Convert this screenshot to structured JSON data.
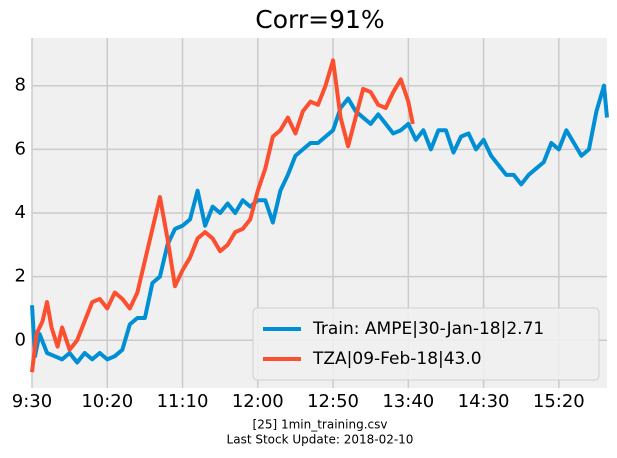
{
  "chart_data": {
    "type": "line",
    "title": "Corr=91%",
    "xlabel": [
      "[25] 1min_training.csv",
      "Last Stock Update: 2018-02-10"
    ],
    "xlim": [
      570,
      952
    ],
    "ylim": [
      -1.5,
      9.5
    ],
    "xticks": [
      {
        "value": 570,
        "label": "9:30"
      },
      {
        "value": 620,
        "label": "10:20"
      },
      {
        "value": 670,
        "label": "11:10"
      },
      {
        "value": 720,
        "label": "12:00"
      },
      {
        "value": 770,
        "label": "12:50"
      },
      {
        "value": 820,
        "label": "13:40"
      },
      {
        "value": 870,
        "label": "14:30"
      },
      {
        "value": 920,
        "label": "15:20"
      }
    ],
    "yticks": [
      0,
      2,
      4,
      6,
      8
    ],
    "grid": true,
    "legend": "lower right",
    "series": [
      {
        "name": "Train: AMPE|30-Jan-18|2.71",
        "color": "#008fd5",
        "x": [
          570,
          572,
          575,
          580,
          585,
          590,
          595,
          600,
          605,
          610,
          615,
          620,
          625,
          630,
          635,
          640,
          645,
          650,
          655,
          660,
          665,
          670,
          675,
          680,
          685,
          690,
          695,
          700,
          705,
          710,
          715,
          720,
          725,
          730,
          735,
          740,
          745,
          750,
          755,
          760,
          765,
          770,
          775,
          780,
          785,
          790,
          795,
          800,
          805,
          810,
          815,
          820,
          825,
          830,
          835,
          840,
          845,
          850,
          855,
          860,
          865,
          870,
          875,
          880,
          885,
          890,
          895,
          900,
          905,
          910,
          915,
          920,
          925,
          930,
          935,
          940,
          945,
          950,
          952
        ],
        "values": [
          1.1,
          -0.5,
          0.2,
          -0.4,
          -0.5,
          -0.6,
          -0.4,
          -0.7,
          -0.4,
          -0.6,
          -0.4,
          -0.6,
          -0.5,
          -0.3,
          0.5,
          0.7,
          0.7,
          1.8,
          2.0,
          3.0,
          3.5,
          3.6,
          3.8,
          4.7,
          3.6,
          4.2,
          4.0,
          4.3,
          4.0,
          4.4,
          4.2,
          4.4,
          4.4,
          3.7,
          4.7,
          5.2,
          5.8,
          6.0,
          6.2,
          6.2,
          6.4,
          6.6,
          7.3,
          7.6,
          7.2,
          7.0,
          6.8,
          7.1,
          6.8,
          6.5,
          6.6,
          6.8,
          6.3,
          6.6,
          6.0,
          6.6,
          6.6,
          5.9,
          6.4,
          6.5,
          6.0,
          6.3,
          5.8,
          5.5,
          5.2,
          5.2,
          4.9,
          5.2,
          5.4,
          5.6,
          6.2,
          6.0,
          6.6,
          6.2,
          5.8,
          6.0,
          7.2,
          8.0,
          7.0
        ]
      },
      {
        "name": "TZA|09-Feb-18|43.0",
        "color": "#fc4f30",
        "x": [
          570,
          573,
          577,
          580,
          583,
          587,
          590,
          595,
          600,
          605,
          610,
          615,
          620,
          625,
          630,
          635,
          640,
          645,
          650,
          655,
          660,
          665,
          670,
          675,
          680,
          685,
          690,
          695,
          700,
          705,
          710,
          715,
          720,
          725,
          730,
          735,
          740,
          745,
          750,
          755,
          760,
          765,
          770,
          775,
          780,
          785,
          790,
          795,
          800,
          805,
          810,
          815,
          820,
          823
        ],
        "values": [
          -1.0,
          0.2,
          0.6,
          1.2,
          0.4,
          -0.2,
          0.4,
          -0.3,
          0.0,
          0.6,
          1.2,
          1.3,
          1.0,
          1.5,
          1.3,
          1.0,
          1.5,
          2.5,
          3.5,
          4.5,
          3.2,
          1.7,
          2.2,
          2.6,
          3.2,
          3.4,
          3.2,
          2.8,
          3.0,
          3.4,
          3.5,
          3.8,
          4.7,
          5.4,
          6.4,
          6.6,
          7.0,
          6.5,
          7.2,
          7.5,
          7.4,
          8.0,
          8.8,
          7.0,
          6.1,
          7.0,
          7.9,
          7.8,
          7.4,
          7.3,
          7.8,
          8.2,
          7.5,
          6.8
        ]
      }
    ]
  }
}
